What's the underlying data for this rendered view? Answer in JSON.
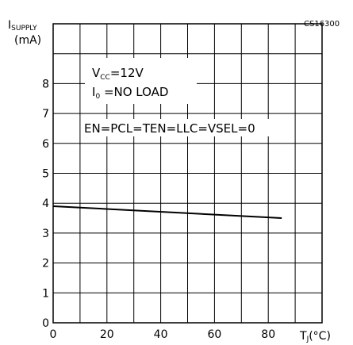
{
  "chart_data": {
    "type": "line",
    "code": "CS16300",
    "ylabel": {
      "main": "I",
      "sub": "SUPPLY",
      "unit": "(mA)"
    },
    "xlabel": {
      "main": "T",
      "sub": "J",
      "unit": "(°C)"
    },
    "xlim": [
      0,
      100
    ],
    "ylim": [
      0,
      10
    ],
    "x_ticks": [
      0,
      20,
      40,
      60,
      80
    ],
    "y_ticks": [
      0,
      1,
      2,
      3,
      4,
      5,
      6,
      7,
      8
    ],
    "grid": true,
    "annotations": {
      "vcc": {
        "main": "V",
        "sub": "CC",
        "rest": "=12V"
      },
      "io": {
        "main": "I",
        "sub": "0",
        "rest": " =NO  LOAD"
      },
      "enable": "EN=PCL=TEN=LLC=VSEL=0"
    },
    "series": [
      {
        "x": [
          0,
          85
        ],
        "y": [
          3.9,
          3.5
        ]
      }
    ]
  }
}
